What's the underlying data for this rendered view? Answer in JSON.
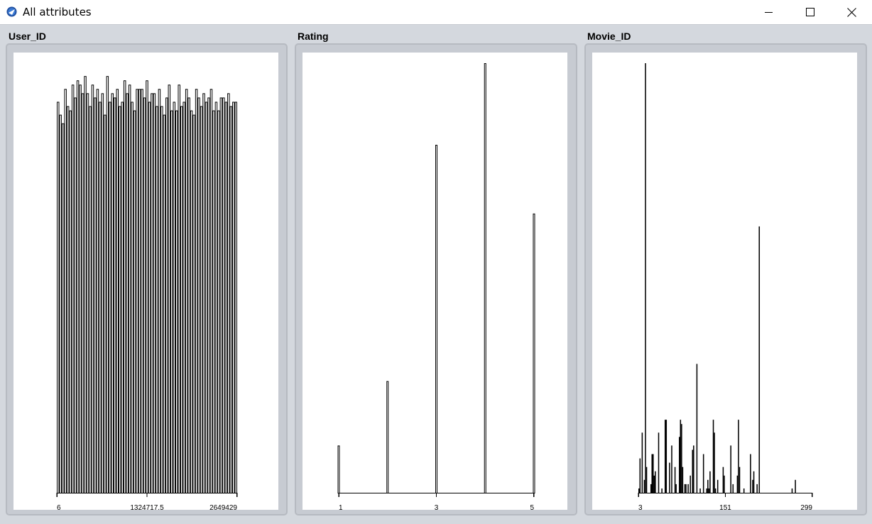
{
  "window": {
    "title": "All attributes",
    "icons": {
      "app": "app-icon",
      "minimize": "minimize-icon",
      "maximize": "maximize-icon",
      "close": "close-icon"
    }
  },
  "colors": {
    "frame": "#d4d8de",
    "panel": "#c7cbd2",
    "plot_bg": "#ffffff",
    "bar_stroke": "#000000"
  },
  "chart_data": [
    {
      "type": "bar",
      "title": "User_ID",
      "x_tick_labels": [
        "6",
        "1324717.5",
        "2649429"
      ],
      "ylim": [
        0,
        100
      ],
      "values": [
        91,
        88,
        86,
        94,
        90,
        89,
        95,
        92,
        96,
        95,
        93,
        97,
        93,
        90,
        95,
        92,
        94,
        91,
        93,
        88,
        97,
        91,
        93,
        92,
        94,
        90,
        91,
        96,
        93,
        95,
        91,
        89,
        94,
        94,
        94,
        92,
        96,
        91,
        93,
        93,
        90,
        94,
        90,
        88,
        92,
        95,
        89,
        91,
        89,
        95,
        90,
        91,
        94,
        92,
        89,
        88,
        94,
        92,
        90,
        93,
        91,
        92,
        94,
        89,
        91,
        89,
        92,
        92,
        91,
        93,
        90,
        91,
        91
      ]
    },
    {
      "type": "bar",
      "title": "Rating",
      "x_tick_labels": [
        "1",
        "3",
        "5"
      ],
      "x": [
        1,
        2,
        3,
        4,
        5
      ],
      "ylim": [
        0,
        100
      ],
      "values": [
        11,
        26,
        81,
        100,
        65
      ]
    },
    {
      "type": "bar",
      "title": "Movie_ID",
      "x_tick_labels": [
        "3",
        "151",
        "299"
      ],
      "ylim": [
        0,
        100
      ],
      "values": [
        1,
        8,
        0,
        14,
        0,
        3,
        100,
        6,
        0,
        0,
        0,
        2,
        9,
        9,
        4,
        5,
        0,
        0,
        14,
        0,
        0,
        1,
        0,
        0,
        17,
        17,
        0,
        0,
        7,
        0,
        11,
        0,
        0,
        6,
        2,
        0,
        0,
        13,
        17,
        16,
        6,
        0,
        2,
        2,
        0,
        2,
        0,
        4,
        0,
        10,
        11,
        0,
        0,
        30,
        0,
        0,
        1,
        0,
        0,
        9,
        0,
        0,
        1,
        3,
        1,
        5,
        0,
        0,
        17,
        14,
        1,
        0,
        3,
        0,
        0,
        0,
        0,
        6,
        4,
        0,
        0,
        0,
        0,
        0,
        11,
        0,
        2,
        0,
        0,
        0,
        4,
        17,
        6,
        0,
        0,
        0,
        1,
        0,
        0,
        0,
        0,
        0,
        9,
        0,
        3,
        5,
        0,
        0,
        2,
        0,
        62,
        0,
        0,
        0,
        0,
        0,
        0,
        0,
        0,
        0,
        0,
        0,
        0,
        0,
        0,
        0,
        0,
        0,
        0,
        0,
        0,
        0,
        0,
        0,
        0,
        0,
        0,
        0,
        0,
        0,
        1,
        0,
        0,
        3,
        0,
        0,
        0,
        0,
        0,
        0,
        0,
        0,
        0,
        0,
        0,
        0,
        0,
        0,
        0
      ]
    }
  ]
}
